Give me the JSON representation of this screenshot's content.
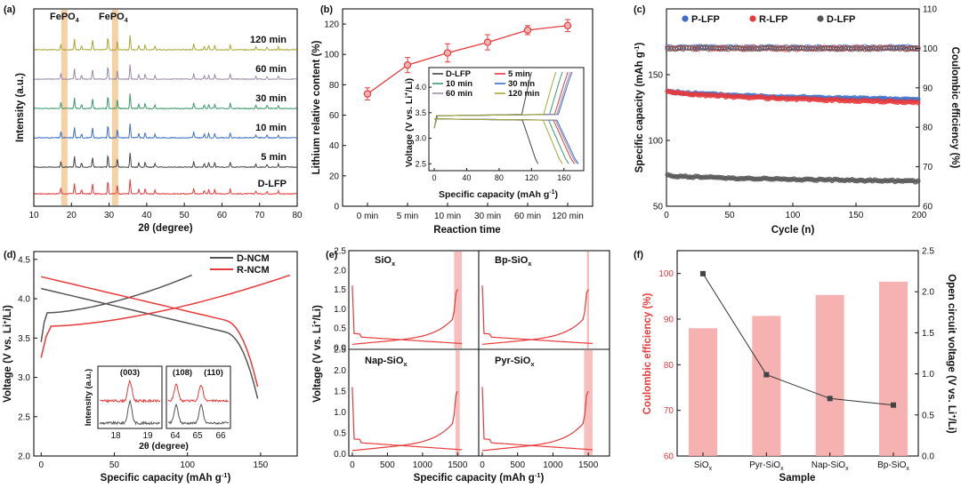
{
  "colors": {
    "red": "#e8393b",
    "green": "#3a9a6a",
    "blue": "#3a6fc8",
    "olive": "#a9a737",
    "purple": "#9a8ca8",
    "gray": "#444444",
    "orange": "#f2c58f",
    "pink": "#f4a3a3",
    "darkgray": "#555555"
  },
  "chart_data": [
    {
      "id": "a",
      "panel_label": "(a)",
      "type": "line",
      "title": "",
      "xlabel": "2θ (degree)",
      "ylabel": "Intensity (a.u.)",
      "xlim": [
        10,
        80
      ],
      "xticks": [
        "10",
        "20",
        "30",
        "40",
        "50",
        "60",
        "70",
        "80"
      ],
      "annotations": [
        "FePO",
        "4",
        "FePO",
        "4"
      ],
      "highlight_bands": [
        18,
        31.5
      ],
      "series": [
        {
          "name": "D-LFP"
        },
        {
          "name": "5 min"
        },
        {
          "name": "10 min"
        },
        {
          "name": "30 min"
        },
        {
          "name": "60 min"
        },
        {
          "name": "120 min"
        }
      ]
    },
    {
      "id": "b",
      "panel_label": "(b)",
      "type": "line",
      "title": "",
      "xlabel": "Reaction time",
      "ylabel": "Lithium relative content (%)",
      "ylim": [
        0,
        130
      ],
      "categories": [
        "0 min",
        "5 min",
        "10 min",
        "30 min",
        "60 min",
        "120 min"
      ],
      "yticks": [
        "0",
        "20",
        "40",
        "60",
        "80",
        "100",
        "120"
      ],
      "values": [
        74,
        93,
        101,
        108,
        116,
        119
      ],
      "errors": [
        4,
        5,
        6,
        5,
        3,
        4
      ],
      "inset": {
        "type": "line",
        "xlabel": "Specific capacity (mAh g",
        "xlabel_sup": "-1",
        "xlabel_end": ")",
        "ylabel": "Voltage (V vs. Li",
        "ylabel_sup": "+",
        "ylabel_end": "/Li)",
        "xticks": [
          "0",
          "40",
          "80",
          "120",
          "160"
        ],
        "yticks": [
          "2.5",
          "3.0",
          "3.5",
          "4.0"
        ],
        "xlim": [
          0,
          180
        ],
        "ylim": [
          2.4,
          4.35
        ],
        "legend": [
          "D-LFP",
          "5 min",
          "10 min",
          "30 min",
          "60 min",
          "120 min"
        ],
        "final_capacity": [
          120,
          165,
          158,
          170,
          168,
          150
        ]
      }
    },
    {
      "id": "c",
      "panel_label": "(c)",
      "type": "scatter",
      "xlabel": "Cycle (n)",
      "ylabel": "Specific capacity (mAh g",
      "ylabel_sup": "-1",
      "ylabel_end": ")",
      "ylabel2": "Coulombic efficiency (%)",
      "xlim": [
        0,
        200
      ],
      "ylim": [
        50,
        200
      ],
      "y2lim": [
        60,
        110
      ],
      "xticks": [
        "0",
        "50",
        "100",
        "150",
        "200"
      ],
      "yticks": [
        "50",
        "100",
        "150"
      ],
      "y2ticks": [
        "60",
        "70",
        "80",
        "90",
        "100",
        "110"
      ],
      "series": [
        {
          "name": "P-LFP",
          "capacity_start": 138,
          "capacity_end": 131
        },
        {
          "name": "R-LFP",
          "capacity_start": 138,
          "capacity_end": 129
        },
        {
          "name": "D-LFP",
          "capacity_start": 74,
          "capacity_end": 69
        }
      ],
      "ce": 100
    },
    {
      "id": "d",
      "panel_label": "(d)",
      "type": "line",
      "xlabel": "Specific capacity (mAh g",
      "xlabel_sup": "-1",
      "xlabel_end": ")",
      "ylabel": "Voltage (V vs. Li",
      "ylabel_sup": "+",
      "ylabel_end": "/Li)",
      "xlim": [
        -5,
        175
      ],
      "ylim": [
        2.0,
        4.6
      ],
      "xticks": [
        "0",
        "50",
        "100",
        "150"
      ],
      "yticks": [
        "2.0",
        "2.5",
        "3.0",
        "3.5",
        "4.0",
        "4.5"
      ],
      "series": [
        {
          "name": "D-NCM",
          "charge_end": 103,
          "discharge_end": 148
        },
        {
          "name": "R-NCM",
          "charge_end": 170,
          "discharge_end": 148
        }
      ],
      "inset": {
        "ylabel": "Intensity (a.u.)",
        "xlabel": "2θ (degree)",
        "peaks": [
          "(003)",
          "(108)",
          "(110)"
        ],
        "xticks_left": [
          "18",
          "19"
        ],
        "xticks_right": [
          "64",
          "65",
          "66"
        ]
      }
    },
    {
      "id": "e",
      "panel_label": "(e)",
      "type": "line",
      "xlabel": "Specific capacity (mAh g",
      "xlabel_sup": "-1",
      "xlabel_end": ")",
      "ylabel": "Voltage (V vs. Li",
      "ylabel_sup": "+",
      "ylabel_end": "/Li)",
      "xticks": [
        "0",
        "500",
        "1000",
        "1500"
      ],
      "yticks": [
        "0.0",
        "0.5",
        "1.0",
        "1.5",
        "2.0",
        "2.5"
      ],
      "subplots": [
        {
          "name": "SiO",
          "sub": "x"
        },
        {
          "name": "Bp-SiO",
          "sub": "x"
        },
        {
          "name": "Nap-SiO",
          "sub": "x"
        },
        {
          "name": "Pyr-SiO",
          "sub": "x"
        }
      ]
    },
    {
      "id": "f",
      "panel_label": "(f)",
      "type": "bar",
      "xlabel": "Sample",
      "ylabel": "Coulombic efficiency (%)",
      "ylabel2": "Open circuit voltage (V vs. Li",
      "ylabel2_sup": "+",
      "ylabel2_end": "/Li)",
      "categories": [
        {
          "name": "SiO",
          "sub": "x"
        },
        {
          "name": "Pyr-SiO",
          "sub": "x"
        },
        {
          "name": "Nap-SiO",
          "sub": "x"
        },
        {
          "name": "Bp-SiO",
          "sub": "x"
        }
      ],
      "ylim": [
        60,
        105
      ],
      "y2lim": [
        0,
        2.5
      ],
      "yticks": [
        "60",
        "70",
        "80",
        "90",
        "100"
      ],
      "y2ticks": [
        "0.0",
        "0.5",
        "1.0",
        "1.5",
        "2.0",
        "2.5"
      ],
      "values": [
        88,
        90.7,
        95.3,
        98.2
      ],
      "ocv": [
        2.22,
        0.99,
        0.7,
        0.62
      ]
    }
  ]
}
